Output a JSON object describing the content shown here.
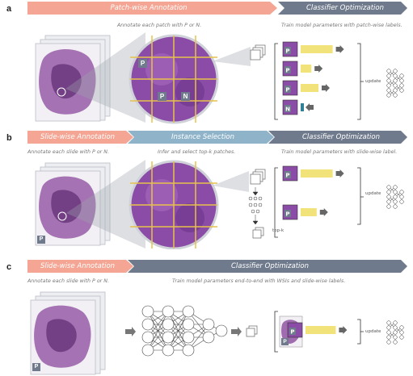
{
  "panels": {
    "a": {
      "letter": "a",
      "stages": [
        "Patch-wise Annotation",
        "Classifier Optimization"
      ],
      "captions": [
        "Annotate each patch with P or N.",
        "Train model parameters with patch-wise labels."
      ],
      "patch_labels": [
        "P",
        "P",
        "N"
      ],
      "classifier_rows": [
        {
          "label": "P",
          "score": 0.9,
          "class": "positive"
        },
        {
          "label": "P",
          "score": 0.3,
          "class": "positive"
        },
        {
          "label": "P",
          "score": 0.5,
          "class": "positive"
        },
        {
          "label": "N",
          "score": 0.08,
          "class": "negative"
        }
      ],
      "update_label": "update"
    },
    "b": {
      "letter": "b",
      "stages": [
        "Slide-wise Annotation",
        "Instance Selection",
        "Classifier Optimization"
      ],
      "captions": [
        "Annotate each slide with P or N.",
        "Infer and select top-k patches.",
        "Train model parameters with slide-wise label."
      ],
      "slide_label": "P",
      "classifier_rows": [
        {
          "label": "P",
          "score": 0.9,
          "class": "positive"
        },
        {
          "label": "P",
          "score": 0.45,
          "class": "positive"
        }
      ],
      "topk_label": "top-k",
      "update_label": "update"
    },
    "c": {
      "letter": "c",
      "stages": [
        "Slide-wise Annotation",
        "Classifier Optimization"
      ],
      "captions": [
        "Annotate each slide with P or N.",
        "Train model parameters end-to-end with WSIs and slide-wise labels."
      ],
      "slide_label": "P",
      "classifier_rows": [
        {
          "label": "P",
          "score": 0.85,
          "class": "positive"
        }
      ],
      "update_label": "update"
    }
  },
  "colors": {
    "annotation": "#f4a593",
    "selection": "#8fb3c9",
    "optimization": "#6f7a8c",
    "bar_positive": "#f2e27a",
    "bar_negative": "#2f7f95",
    "tissue": "#8b4a9e",
    "grid_line": "#e8c24a"
  }
}
